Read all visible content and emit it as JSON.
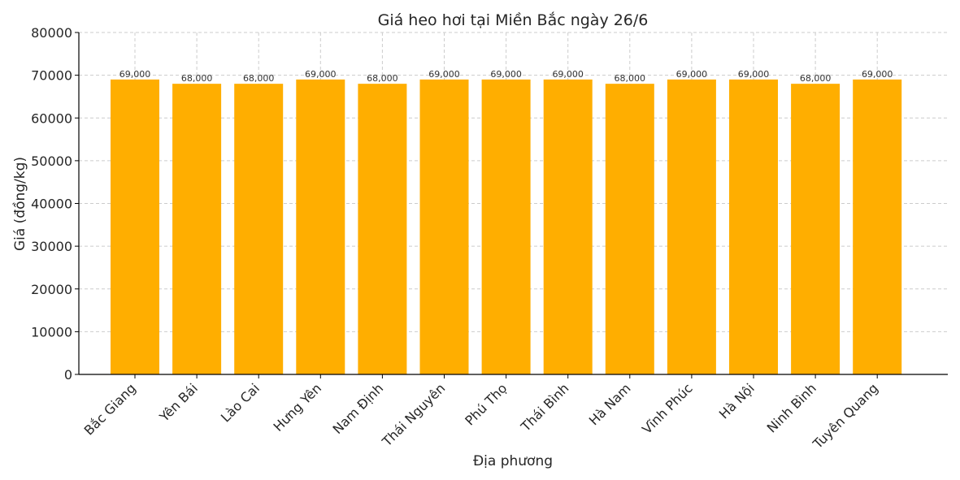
{
  "chart_data": {
    "type": "bar",
    "title": "Giá heo hơi tại Miền Bắc ngày 26/6",
    "xlabel": "Địa phương",
    "ylabel": "Giá (đồng/kg)",
    "categories": [
      "Bắc Giang",
      "Yên Bái",
      "Lào Cai",
      "Hưng Yên",
      "Nam Định",
      "Thái Nguyên",
      "Phú Thọ",
      "Thái Bình",
      "Hà Nam",
      "Vĩnh Phúc",
      "Hà Nội",
      "Ninh Bình",
      "Tuyên Quang"
    ],
    "values": [
      69000,
      68000,
      68000,
      69000,
      68000,
      69000,
      69000,
      69000,
      68000,
      69000,
      69000,
      68000,
      69000
    ],
    "value_labels": [
      "69,000",
      "68,000",
      "68,000",
      "69,000",
      "68,000",
      "69,000",
      "69,000",
      "69,000",
      "68,000",
      "69,000",
      "69,000",
      "68,000",
      "69,000"
    ],
    "ylim": [
      0,
      80000
    ],
    "yticks": [
      "0",
      "10000",
      "20000",
      "30000",
      "40000",
      "50000",
      "60000",
      "70000",
      "80000"
    ],
    "grid": true,
    "bar_color": "#FFAE00"
  }
}
